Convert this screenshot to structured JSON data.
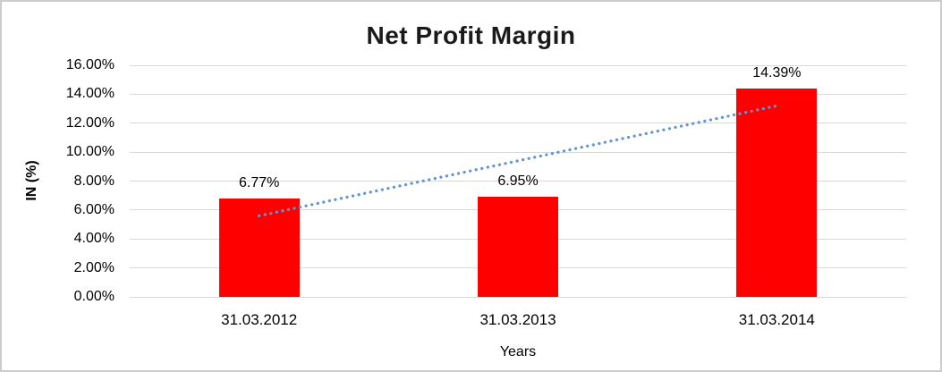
{
  "chart_data": {
    "type": "bar",
    "title": "Net Profit Margin",
    "xlabel": "Years",
    "ylabel": "IN (%)",
    "categories": [
      "31.03.2012",
      "31.03.2013",
      "31.03.2014"
    ],
    "values": [
      6.77,
      6.95,
      14.39
    ],
    "data_labels": [
      "6.77%",
      "6.95%",
      "14.39%"
    ],
    "y_ticks": [
      "16.00%",
      "14.00%",
      "12.00%",
      "10.00%",
      "8.00%",
      "6.00%",
      "4.00%",
      "2.00%",
      "0.00%"
    ],
    "ylim": [
      0,
      16
    ],
    "y_tick_step": 2,
    "grid": true,
    "legend": false,
    "bar_color": "#FF0000",
    "trendline": {
      "kind": "linear",
      "style": "dotted",
      "color": "#6295D2",
      "from_value": 5.6,
      "to_value": 13.2
    },
    "colors": {
      "gridline": "#D9D9D9",
      "frame_border": "#CCCCCC",
      "text": "#000000",
      "title_text": "#1A1A1A",
      "background": "#FFFFFF"
    }
  }
}
